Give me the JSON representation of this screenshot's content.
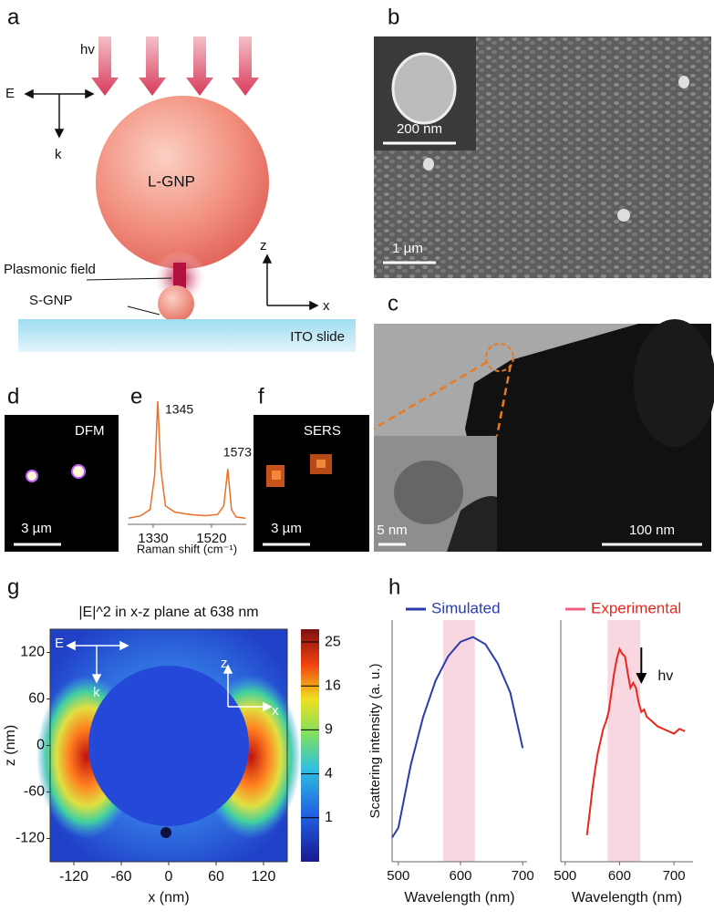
{
  "panel_labels": [
    "a",
    "b",
    "c",
    "d",
    "e",
    "f",
    "g",
    "h"
  ],
  "panel_a": {
    "hv": "hv",
    "E": "E",
    "k": "k",
    "particle": "L-GNP",
    "field": "Plasmonic field",
    "small": "S-GNP",
    "z": "z",
    "x": "x",
    "slide": "ITO slide"
  },
  "panel_b": {
    "inset_scale": "200 nm",
    "scale": "1 µm"
  },
  "panel_c": {
    "inset_scale": "5 nm",
    "scale": "100 nm"
  },
  "panel_d": {
    "title": "DFM",
    "scale": "3 µm"
  },
  "panel_f": {
    "title": "SERS",
    "scale": "3 µm"
  },
  "panel_g": {
    "E": "E",
    "k": "k",
    "z": "z",
    "x": "x"
  },
  "chart_data": [
    {
      "type": "line",
      "x_label": "Raman shift (cm⁻¹)",
      "xlim": [
        1247,
        1633
      ],
      "ylim": [
        0,
        1
      ],
      "xticks": [
        1330,
        1520
      ],
      "x": [
        1250,
        1290,
        1320,
        1335,
        1345,
        1355,
        1370,
        1400,
        1450,
        1500,
        1540,
        1560,
        1573,
        1585,
        1600,
        1630
      ],
      "series": [
        {
          "color": "#e8702a",
          "values": [
            0.05,
            0.07,
            0.12,
            0.4,
            1.0,
            0.45,
            0.15,
            0.1,
            0.08,
            0.07,
            0.08,
            0.15,
            0.45,
            0.12,
            0.06,
            0.05
          ]
        }
      ],
      "annotations": [
        {
          "text": "1345",
          "x": 1345
        },
        {
          "text": "1573",
          "x": 1573
        }
      ]
    },
    {
      "type": "heatmap",
      "title": "|E|^2 in x-z plane at 638 nm",
      "x_label": "x (nm)",
      "y_label": "z (nm)",
      "xlim": [
        -150,
        150
      ],
      "ylim": [
        -150,
        150
      ],
      "xticks": [
        -120,
        -60,
        0,
        60,
        120
      ],
      "yticks": [
        -120,
        -60,
        0,
        60,
        120
      ],
      "colorbar": {
        "lim": [
          0,
          28
        ],
        "scale": "sqrt",
        "ticks": [
          1,
          4,
          9,
          16,
          25
        ]
      }
    },
    {
      "type": "line",
      "x_label": "Wavelength (nm)",
      "y_label": "Scattering intensity (a. u.)",
      "xlim": [
        490,
        707
      ],
      "ylim": [
        0,
        1
      ],
      "xticks": [
        500,
        600,
        700
      ],
      "highlight": [
        572,
        623
      ],
      "x": [
        490,
        500,
        520,
        540,
        560,
        580,
        600,
        620,
        640,
        660,
        680,
        700
      ],
      "series": [
        {
          "name": "Simulated",
          "color": "#2a3bb0",
          "values": [
            0.1,
            0.14,
            0.4,
            0.6,
            0.75,
            0.85,
            0.91,
            0.93,
            0.9,
            0.82,
            0.7,
            0.47
          ]
        }
      ]
    },
    {
      "type": "line",
      "x_label": "Wavelength (nm)",
      "xlim": [
        492,
        735
      ],
      "ylim": [
        0,
        1
      ],
      "xticks": [
        500,
        600,
        700
      ],
      "highlight": [
        578,
        638
      ],
      "x": [
        540,
        545,
        550,
        555,
        560,
        565,
        570,
        575,
        580,
        585,
        590,
        595,
        600,
        605,
        610,
        615,
        620,
        625,
        630,
        635,
        640,
        645,
        650,
        660,
        670,
        680,
        690,
        700,
        710,
        720
      ],
      "series": [
        {
          "name": "Experimental",
          "color": "#e8281e",
          "values": [
            0.11,
            0.2,
            0.3,
            0.38,
            0.45,
            0.5,
            0.55,
            0.58,
            0.62,
            0.7,
            0.78,
            0.84,
            0.88,
            0.86,
            0.85,
            0.78,
            0.72,
            0.74,
            0.72,
            0.66,
            0.62,
            0.63,
            0.6,
            0.58,
            0.56,
            0.55,
            0.54,
            0.53,
            0.55,
            0.54
          ]
        }
      ],
      "annotations": [
        {
          "text": "hv",
          "x": 640
        }
      ]
    }
  ]
}
